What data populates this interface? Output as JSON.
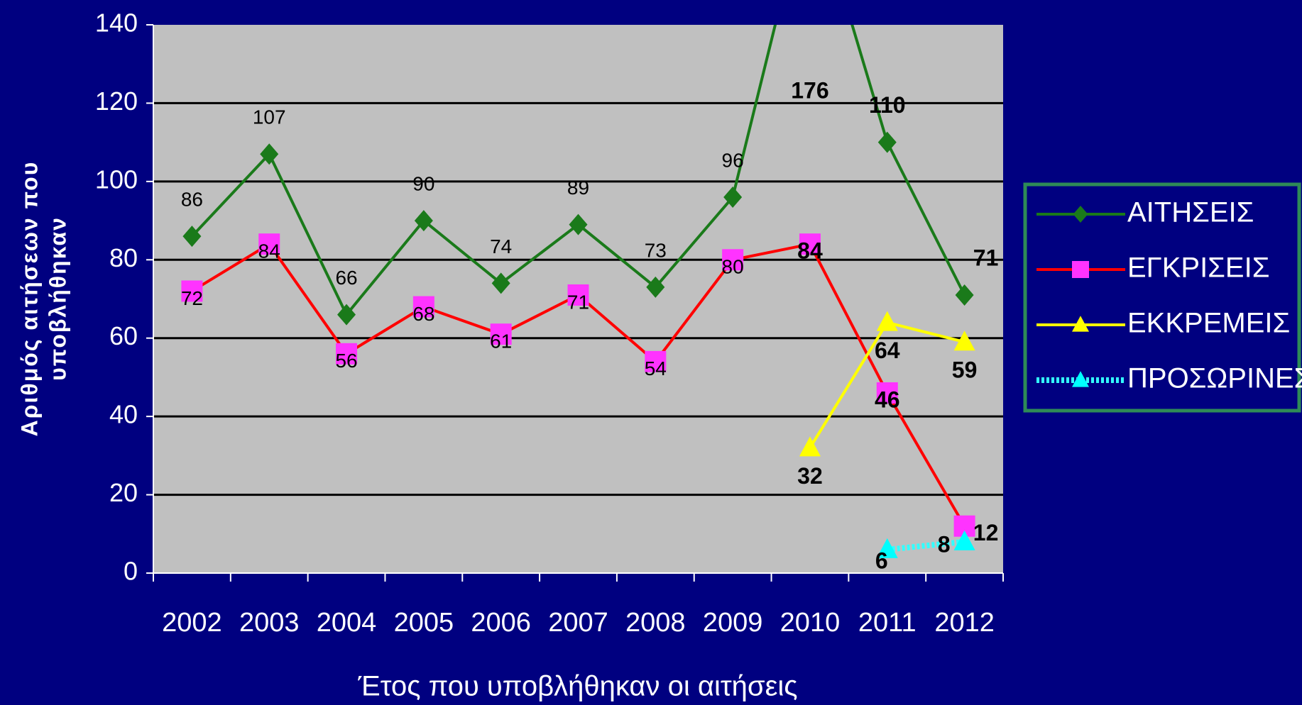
{
  "chart_data": {
    "type": "line",
    "y_label": [
      "Αριθμός αιτήσεων που",
      "υποβλήθηκαν"
    ],
    "x_label": "Έτος που υποβλήθηκαν οι αιτήσεις",
    "categories": [
      "2002",
      "2003",
      "2004",
      "2005",
      "2006",
      "2007",
      "2008",
      "2009",
      "2010",
      "2011",
      "2012"
    ],
    "series": [
      {
        "name": "ΑΙΤΗΣΕΙΣ",
        "color": "#1a7a1a",
        "marker_color": "#1a7a1a",
        "marker": "diamond",
        "values": [
          86,
          107,
          66,
          90,
          74,
          89,
          73,
          96,
          176,
          110,
          71
        ]
      },
      {
        "name": "ΕΓΚΡΙΣΕΙΣ",
        "color": "#ff0000",
        "marker_color": "#ff33ff",
        "marker": "square",
        "values": [
          72,
          84,
          56,
          68,
          61,
          71,
          54,
          80,
          84,
          46,
          12
        ]
      },
      {
        "name": "ΕΚΚΡΕΜΕΙΣ",
        "color": "#ffff00",
        "marker_color": "#ffff00",
        "marker": "triangle",
        "values": [
          null,
          null,
          null,
          null,
          null,
          null,
          null,
          null,
          32,
          64,
          59
        ]
      },
      {
        "name": "ΠΡΟΣΩΡΙΝΕΣ",
        "color": "#33ffff",
        "marker_color": "#00ffff",
        "marker": "triangle",
        "values": [
          null,
          null,
          null,
          null,
          null,
          null,
          null,
          null,
          null,
          6,
          8
        ]
      }
    ],
    "ylim": [
      0,
      140
    ],
    "yticks": [
      0,
      20,
      40,
      60,
      80,
      100,
      120,
      140
    ],
    "grid": true,
    "legend": "right"
  }
}
